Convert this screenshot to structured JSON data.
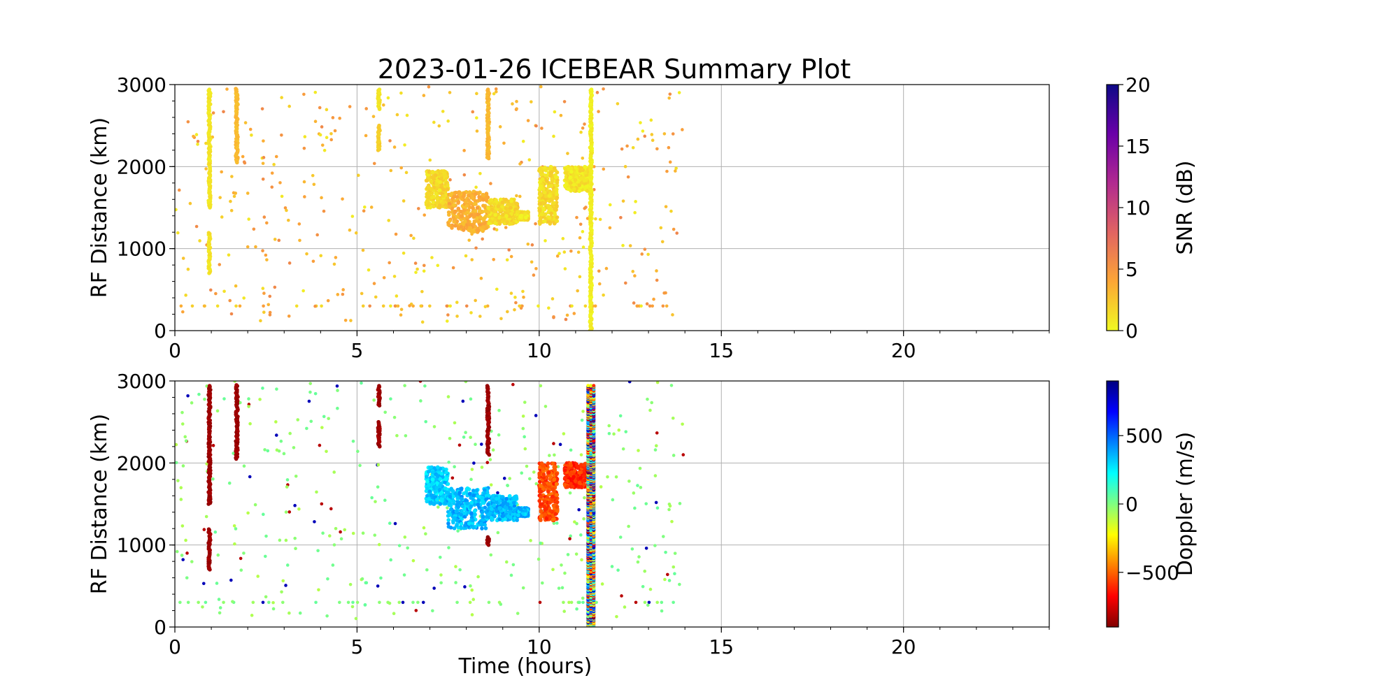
{
  "figure": {
    "title": "2023-01-26 ICEBEAR Summary Plot"
  },
  "chart_data": [
    {
      "type": "scatter",
      "name": "snr-panel",
      "xlabel": "",
      "ylabel": "RF Distance (km)",
      "xlim": [
        0,
        24
      ],
      "ylim": [
        0,
        3000
      ],
      "xticks": [
        0,
        5,
        10,
        15,
        20
      ],
      "yticks": [
        0,
        1000,
        2000,
        3000
      ],
      "grid": true,
      "colorbar": {
        "label": "SNR (dB)",
        "range": [
          0,
          20
        ],
        "ticks": [
          0,
          5,
          10,
          15,
          20
        ],
        "colormap": "plasma_r",
        "stops": [
          "#f0f921",
          "#fca636",
          "#e16462",
          "#b12a90",
          "#6a00a8",
          "#0d0887"
        ]
      },
      "bands": [
        {
          "x": 0.95,
          "y": [
            1500,
            2950
          ],
          "c": 1
        },
        {
          "x": 0.95,
          "y": [
            700,
            1200
          ],
          "c": 1
        },
        {
          "x": 1.7,
          "y": [
            2050,
            2950
          ],
          "c": 3
        },
        {
          "x": 5.6,
          "y": [
            2700,
            2950
          ],
          "c": 1
        },
        {
          "x": 5.6,
          "y": [
            2200,
            2500
          ],
          "c": 2
        },
        {
          "x": 8.6,
          "y": [
            2100,
            2950
          ],
          "c": 3
        },
        {
          "x": 11.42,
          "y": [
            0,
            2950
          ],
          "c": 0.5
        }
      ],
      "clusters": [
        {
          "x": [
            6.9,
            7.5
          ],
          "y": [
            1500,
            1950
          ],
          "c": 1.5
        },
        {
          "x": [
            7.5,
            8.6
          ],
          "y": [
            1200,
            1700
          ],
          "c": 3.5
        },
        {
          "x": [
            8.6,
            9.4
          ],
          "y": [
            1300,
            1600
          ],
          "c": 1.5
        },
        {
          "x": [
            9.4,
            9.7
          ],
          "y": [
            1350,
            1450
          ],
          "c": 1
        },
        {
          "x": [
            10.0,
            10.5
          ],
          "y": [
            1300,
            2000
          ],
          "c": 1.5
        },
        {
          "x": [
            10.7,
            11.4
          ],
          "y": [
            1700,
            2000
          ],
          "c": 1
        }
      ],
      "scatter_region": {
        "x": [
          0,
          14
        ],
        "y": [
          100,
          3000
        ],
        "c": [
          0.5,
          6
        ]
      }
    },
    {
      "type": "scatter",
      "name": "doppler-panel",
      "xlabel": "Time (hours)",
      "ylabel": "RF Distance (km)",
      "xlim": [
        0,
        24
      ],
      "ylim": [
        0,
        3000
      ],
      "xticks": [
        0,
        5,
        10,
        15,
        20
      ],
      "yticks": [
        0,
        1000,
        2000,
        3000
      ],
      "grid": true,
      "colorbar": {
        "label": "Doppler (m/s)",
        "range": [
          -900,
          900
        ],
        "ticks": [
          -500,
          0,
          500
        ],
        "tick_labels": [
          "−500",
          "0",
          "500"
        ],
        "colormap": "jet_r",
        "stops": [
          "#800000",
          "#ff0000",
          "#ff8000",
          "#ffff00",
          "#80ff80",
          "#00ffff",
          "#0080ff",
          "#0000ff",
          "#000080"
        ]
      },
      "bands": [
        {
          "x": 0.95,
          "y": [
            1500,
            2950
          ],
          "c": -850
        },
        {
          "x": 0.95,
          "y": [
            700,
            1200
          ],
          "c": -850
        },
        {
          "x": 1.7,
          "y": [
            2050,
            2950
          ],
          "c": -850
        },
        {
          "x": 5.6,
          "y": [
            2700,
            2950
          ],
          "c": -850
        },
        {
          "x": 5.6,
          "y": [
            2200,
            2500
          ],
          "c": -850
        },
        {
          "x": 8.6,
          "y": [
            2100,
            2950
          ],
          "c": -850
        },
        {
          "x": 8.6,
          "y": [
            1000,
            1100
          ],
          "c": -850
        }
      ],
      "mixed_band": {
        "x": 11.42,
        "y": [
          0,
          2950
        ]
      },
      "clusters": [
        {
          "x": [
            6.9,
            7.5
          ],
          "y": [
            1500,
            1950
          ],
          "c": 300
        },
        {
          "x": [
            7.5,
            8.6
          ],
          "y": [
            1200,
            1700
          ],
          "c": 350
        },
        {
          "x": [
            8.6,
            9.4
          ],
          "y": [
            1300,
            1600
          ],
          "c": 350
        },
        {
          "x": [
            9.4,
            9.7
          ],
          "y": [
            1350,
            1450
          ],
          "c": 350
        },
        {
          "x": [
            10.0,
            10.5
          ],
          "y": [
            1300,
            2000
          ],
          "c": -550
        },
        {
          "x": [
            10.7,
            11.4
          ],
          "y": [
            1700,
            2000
          ],
          "c": -600
        }
      ],
      "scatter_region": {
        "x": [
          0,
          14
        ],
        "y": [
          100,
          3000
        ],
        "c": [
          -100,
          50
        ]
      }
    }
  ]
}
